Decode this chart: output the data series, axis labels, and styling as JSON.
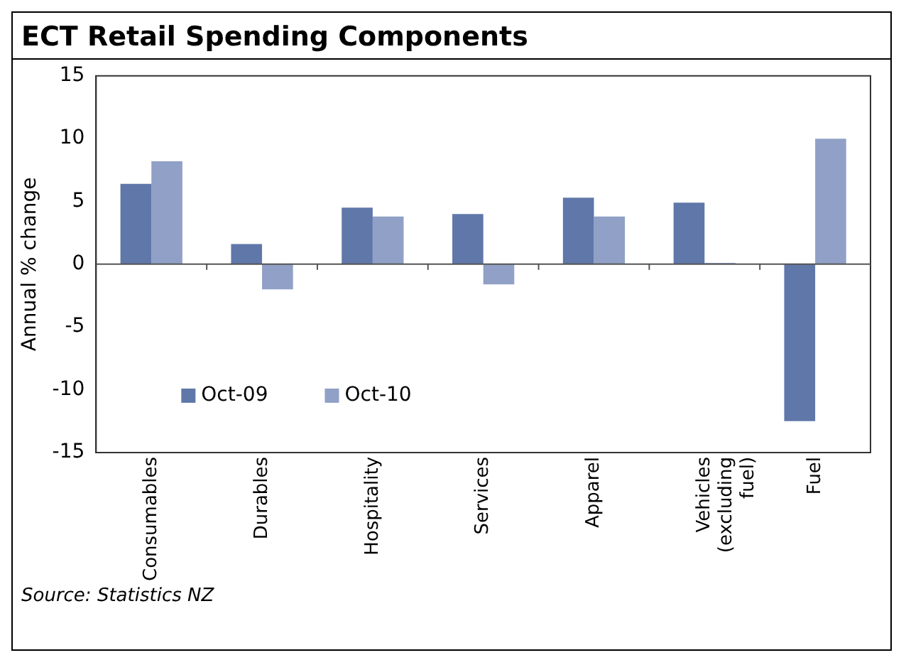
{
  "chart_data": {
    "type": "bar",
    "title": "ECT Retail Spending Components",
    "ylabel": "Annual % change",
    "categories": [
      "Consumables",
      "Durables",
      "Hospitality",
      "Services",
      "Apparel",
      "Vehicles (excluding fuel)",
      "Fuel"
    ],
    "series": [
      {
        "name": "Oct-09",
        "color": "#5f77a9",
        "values": [
          6.4,
          1.6,
          4.5,
          4.0,
          5.3,
          4.9,
          -12.5
        ]
      },
      {
        "name": "Oct-10",
        "color": "#90a0c6",
        "values": [
          8.2,
          -2.0,
          3.8,
          -1.6,
          3.8,
          0.1,
          10.0
        ]
      }
    ],
    "ylim": [
      -15,
      15
    ],
    "yticks": [
      -15,
      -10,
      -5,
      0,
      5,
      10,
      15
    ],
    "grid": false,
    "legend": "bottom left",
    "ref_lines": [
      {
        "axis": "y",
        "value": 0,
        "color": "#555555"
      }
    ],
    "annotations": [
      "Source: Statistics NZ"
    ]
  }
}
